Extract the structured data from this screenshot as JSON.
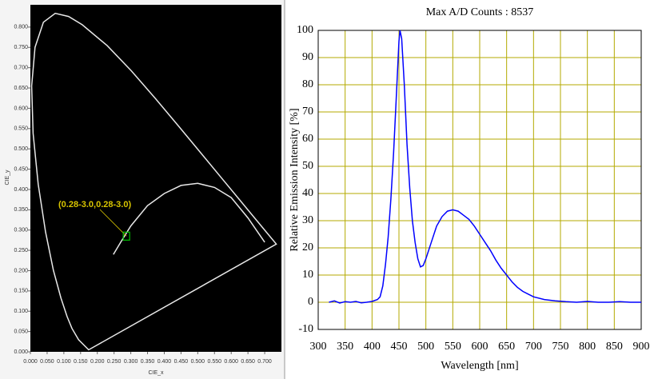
{
  "chart_data": [
    {
      "type": "chromaticity",
      "xlabel": "CIE_x",
      "ylabel": "CIE_y",
      "xlim": [
        0,
        0.75
      ],
      "ylim": [
        0,
        0.85
      ],
      "xticks": [
        {
          "value": 0,
          "label": "0.000"
        },
        {
          "value": 0.05,
          "label": "0.050"
        },
        {
          "value": 0.1,
          "label": "0.100"
        },
        {
          "value": 0.15,
          "label": "0.150"
        },
        {
          "value": 0.2,
          "label": "0.200"
        },
        {
          "value": 0.25,
          "label": "0.250"
        },
        {
          "value": 0.3,
          "label": "0.300"
        },
        {
          "value": 0.35,
          "label": "0.350"
        },
        {
          "value": 0.4,
          "label": "0.400"
        },
        {
          "value": 0.45,
          "label": "0.450"
        },
        {
          "value": 0.5,
          "label": "0.500"
        },
        {
          "value": 0.55,
          "label": "0.550"
        },
        {
          "value": 0.6,
          "label": "0.600"
        },
        {
          "value": 0.65,
          "label": "0.650"
        },
        {
          "value": 0.7,
          "label": "0.700"
        }
      ],
      "yticks": [
        {
          "value": 0,
          "label": "0.000"
        },
        {
          "value": 0.05,
          "label": "0.050"
        },
        {
          "value": 0.1,
          "label": "0.100"
        },
        {
          "value": 0.15,
          "label": "0.150"
        },
        {
          "value": 0.2,
          "label": "0.200"
        },
        {
          "value": 0.25,
          "label": "0.250"
        },
        {
          "value": 0.3,
          "label": "0.300"
        },
        {
          "value": 0.35,
          "label": "0.350"
        },
        {
          "value": 0.4,
          "label": "0.400"
        },
        {
          "value": 0.45,
          "label": "0.450"
        },
        {
          "value": 0.5,
          "label": "0.500"
        },
        {
          "value": 0.55,
          "label": "0.550"
        },
        {
          "value": 0.6,
          "label": "0.600"
        },
        {
          "value": 0.65,
          "label": "0.650"
        },
        {
          "value": 0.7,
          "label": "0.700"
        },
        {
          "value": 0.75,
          "label": "0.750"
        },
        {
          "value": 0.8,
          "label": "0.800"
        }
      ],
      "series": [
        {
          "color": "#e8e8e8",
          "closed": true,
          "x": [
            0.1741,
            0.144,
            0.1241,
            0.1096,
            0.0913,
            0.0687,
            0.0454,
            0.0235,
            0.0082,
            0.0039,
            0.0139,
            0.0389,
            0.0743,
            0.1142,
            0.1547,
            0.2296,
            0.3016,
            0.3731,
            0.4441,
            0.5125,
            0.5752,
            0.627,
            0.6915,
            0.7347
          ],
          "values": [
            0.005,
            0.0297,
            0.0578,
            0.0868,
            0.1327,
            0.2007,
            0.295,
            0.4127,
            0.5384,
            0.6548,
            0.7502,
            0.812,
            0.8338,
            0.8262,
            0.8059,
            0.7543,
            0.6923,
            0.6245,
            0.5547,
            0.4866,
            0.4242,
            0.3725,
            0.3083,
            0.2653
          ]
        },
        {
          "color": "#e8e8e8",
          "closed": false,
          "x": [
            0.248,
            0.27,
            0.3,
            0.35,
            0.4,
            0.45,
            0.5,
            0.55,
            0.6,
            0.65,
            0.7
          ],
          "values": [
            0.24,
            0.27,
            0.31,
            0.36,
            0.39,
            0.41,
            0.415,
            0.405,
            0.38,
            0.33,
            0.27
          ]
        }
      ],
      "point": {
        "x": 0.287,
        "y": 0.285,
        "color": "#00c000"
      },
      "annotation": "(0.28-3.0,0.28-3.0)",
      "annotation_color": "#d8c400"
    },
    {
      "type": "line",
      "title": "Max A/D Counts : 8537",
      "xlabel": "Wavelength [nm]",
      "ylabel": "Relative Emission Intensity [%]",
      "xlim": [
        300,
        900
      ],
      "ylim": [
        -10,
        100
      ],
      "xticks": [
        300,
        350,
        400,
        450,
        500,
        550,
        600,
        650,
        700,
        750,
        800,
        850,
        900
      ],
      "yticks": [
        -10,
        0,
        10,
        20,
        30,
        40,
        50,
        60,
        70,
        80,
        90,
        100
      ],
      "grid": true,
      "grid_color": "#b4aa00",
      "x": [
        320,
        330,
        340,
        350,
        360,
        370,
        380,
        390,
        400,
        410,
        415,
        420,
        425,
        430,
        435,
        440,
        445,
        450,
        452,
        455,
        460,
        465,
        470,
        475,
        480,
        485,
        490,
        495,
        500,
        510,
        520,
        530,
        540,
        550,
        560,
        570,
        580,
        590,
        600,
        610,
        620,
        630,
        640,
        650,
        660,
        670,
        680,
        690,
        700,
        720,
        740,
        760,
        780,
        800,
        820,
        840,
        860,
        880,
        900
      ],
      "series": [
        {
          "color": "#0000ff",
          "values": [
            0,
            0.5,
            -0.3,
            0.2,
            0,
            0.3,
            -0.2,
            0,
            0.3,
            1,
            2,
            6,
            14,
            24,
            38,
            55,
            75,
            96,
            100,
            97,
            80,
            58,
            42,
            30,
            22,
            16,
            13,
            13.5,
            16,
            22,
            28,
            31.5,
            33.5,
            34,
            33.5,
            32,
            30.5,
            28,
            25,
            22,
            19,
            15.5,
            12.5,
            10,
            7.5,
            5.5,
            4,
            3,
            2,
            1,
            0.5,
            0.2,
            0,
            0.3,
            0,
            0,
            0.2,
            0,
            0
          ]
        }
      ]
    }
  ]
}
